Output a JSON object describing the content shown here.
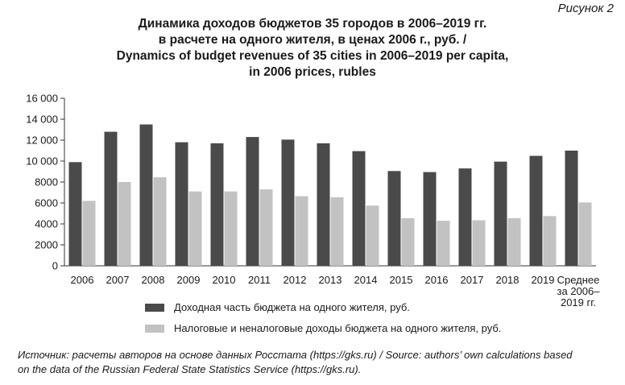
{
  "figure_label": "Рисунок 2",
  "title_lines": [
    "Динамика доходов бюджетов 35 городов в 2006–2019 гг.",
    "в расчете на одного жителя, в ценах 2006 г., руб. /",
    "Dynamics of budget revenues of 35 cities in 2006–2019 per capita,",
    "in 2006 prices, rubles"
  ],
  "chart_data": {
    "type": "bar",
    "categories": [
      "2006",
      "2007",
      "2008",
      "2009",
      "2010",
      "2011",
      "2012",
      "2013",
      "2014",
      "2015",
      "2016",
      "2017",
      "2018",
      "2019",
      "Среднее за 2006–2019 гг."
    ],
    "category_label_lines": [
      [
        "2006"
      ],
      [
        "2007"
      ],
      [
        "2008"
      ],
      [
        "2009"
      ],
      [
        "2010"
      ],
      [
        "2011"
      ],
      [
        "2012"
      ],
      [
        "2013"
      ],
      [
        "2014"
      ],
      [
        "2015"
      ],
      [
        "2016"
      ],
      [
        "2017"
      ],
      [
        "2018"
      ],
      [
        "2019"
      ],
      [
        "Среднее",
        "за 2006–",
        "2019 гг."
      ]
    ],
    "series": [
      {
        "name": "Доходная часть бюджета на одного жителя, руб.",
        "color": "#4a4a4a",
        "values": [
          9900,
          12800,
          13500,
          11800,
          11700,
          12300,
          12050,
          11700,
          10950,
          9050,
          8950,
          9300,
          9950,
          10500,
          11000
        ]
      },
      {
        "name": "Налоговые и неналоговые доходы бюджета на одного жителя, руб.",
        "color": "#c2c2c2",
        "values": [
          6200,
          8000,
          8450,
          7100,
          7100,
          7300,
          6650,
          6550,
          5750,
          4550,
          4300,
          4350,
          4550,
          4750,
          6050
        ]
      }
    ],
    "yticks": [
      "0",
      "2000",
      "4000",
      "6000",
      "8000",
      "10 000",
      "12 000",
      "14 000",
      "16 000"
    ],
    "ylim": [
      0,
      16000
    ],
    "grid": false,
    "legend_position": "bottom"
  },
  "source": [
    "Источник: расчеты авторов на основе данных Росстата (https://gks.ru) / Source: authors’ own calculations based",
    "on the data of the Russian Federal State Statistics Service (https://gks.ru)."
  ]
}
